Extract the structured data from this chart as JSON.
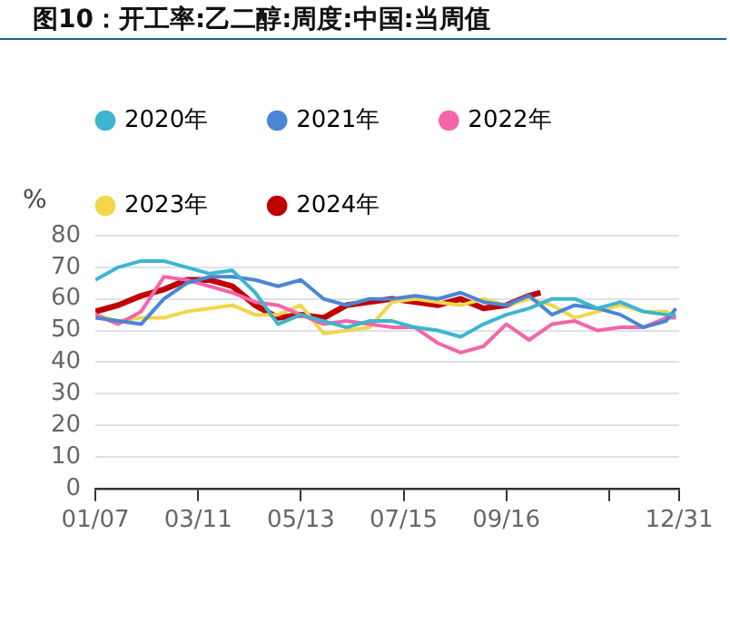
{
  "chart_data": {
    "type": "line",
    "title": "图10：开工率:乙二醇:周度:中国:当周值",
    "ylabel": "%",
    "x": [
      "--01-07",
      "--01-21",
      "--02-04",
      "--02-18",
      "--03-04",
      "--03-18",
      "--04-01",
      "--04-15",
      "--04-29",
      "--05-13",
      "--05-27",
      "--06-10",
      "--06-24",
      "--07-08",
      "--07-22",
      "--08-05",
      "--08-19",
      "--09-02",
      "--09-16",
      "--09-30",
      "--10-14",
      "--10-28",
      "--11-11",
      "--11-25",
      "--12-09",
      "--12-23",
      "--12-29"
    ],
    "series": [
      {
        "name": "2020年",
        "color": "#3db5cf",
        "values": [
          66,
          70,
          72,
          72,
          70,
          68,
          69,
          62,
          52,
          55,
          53,
          51,
          53,
          53,
          51,
          50,
          48,
          52,
          55,
          57,
          60,
          60,
          57,
          59,
          56,
          55,
          55
        ]
      },
      {
        "name": "2021年",
        "color": "#4a86d4",
        "values": [
          54,
          53,
          52,
          60,
          65,
          67,
          67,
          66,
          64,
          66,
          60,
          58,
          60,
          60,
          61,
          60,
          62,
          59,
          58,
          61,
          55,
          58,
          57,
          55,
          51,
          53,
          57
        ]
      },
      {
        "name": "2022年",
        "color": "#f266a8",
        "values": [
          55,
          52,
          56,
          67,
          66,
          64,
          62,
          59,
          58,
          55,
          52,
          53,
          52,
          51,
          51,
          46,
          43,
          45,
          52,
          47,
          52,
          53,
          50,
          51,
          51,
          54,
          54
        ]
      },
      {
        "name": "2023年",
        "color": "#f2d64b",
        "values": [
          55,
          53,
          54,
          54,
          56,
          57,
          58,
          55,
          55,
          58,
          49,
          50,
          51,
          59,
          60,
          59,
          58,
          60,
          58,
          60,
          58,
          54,
          56,
          58,
          56,
          56,
          54
        ]
      },
      {
        "name": "2024年",
        "color": "#c00000",
        "x": [
          "--01-07",
          "--01-21",
          "--02-04",
          "--02-18",
          "--03-04",
          "--03-18",
          "--04-01",
          "--04-15",
          "--04-29",
          "--05-13",
          "--05-27",
          "--06-10",
          "--06-24",
          "--07-08",
          "--07-22",
          "--08-05",
          "--08-19",
          "--09-02",
          "--09-16",
          "--09-30",
          "--10-07"
        ],
        "values": [
          56,
          58,
          61,
          63,
          66,
          66,
          64,
          58,
          54,
          55,
          54,
          58,
          59,
          60,
          59,
          58,
          60,
          57,
          58,
          61,
          62
        ]
      }
    ],
    "xlim": [
      "--01-07",
      "--12-31"
    ],
    "xticks": [
      {
        "value": "--01-07",
        "label": "01/07"
      },
      {
        "value": "--03-11",
        "label": "03/11"
      },
      {
        "value": "--05-13",
        "label": "05/13"
      },
      {
        "value": "--07-15",
        "label": "07/15"
      },
      {
        "value": "--09-16",
        "label": "09/16"
      },
      {
        "value": "--11-18",
        "label": null
      },
      {
        "value": "--12-31",
        "label": "12/31"
      }
    ],
    "ylim": [
      0,
      80
    ],
    "yticks": [
      0,
      10,
      20,
      30,
      40,
      50,
      60,
      70,
      80
    ],
    "grid": "y",
    "legend": "top",
    "marker": "none",
    "line_style": "solid"
  }
}
